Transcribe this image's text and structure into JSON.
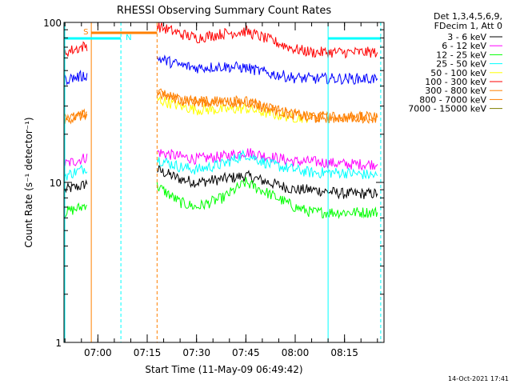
{
  "chart_data": {
    "type": "line",
    "title": "RHESSI Observing Summary Count Rates",
    "xlabel": "Start Time (11-May-09 06:49:42)",
    "ylabel": "Count Rate (s⁻¹ detector⁻¹)",
    "yscale": "log",
    "ylim": [
      1,
      100
    ],
    "xlim": [
      "06:49:42",
      "08:27:00"
    ],
    "x_ticks": [
      "07:00",
      "07:15",
      "07:30",
      "07:45",
      "08:00",
      "08:15"
    ],
    "y_ticks": [
      "1",
      "10",
      "100"
    ],
    "legend_header": [
      "Det 1,3,4,5,6,9,",
      "FDecim 1, Att 0"
    ],
    "legend_position": "right",
    "series": [
      {
        "name": "3 - 6 keV",
        "color": "#000000",
        "x": [
          "06:50",
          "06:55",
          "06:57",
          "07:18",
          "07:25",
          "07:30",
          "07:38",
          "07:45",
          "07:52",
          "08:00",
          "08:05",
          "08:15",
          "08:25"
        ],
        "y": [
          9.0,
          9.5,
          10.0,
          12.0,
          10.5,
          10.0,
          10.5,
          11.0,
          10.0,
          9.0,
          9.0,
          8.5,
          8.5
        ]
      },
      {
        "name": "6 - 12 keV",
        "color": "#ff00ff",
        "x": [
          "06:50",
          "06:55",
          "06:57",
          "07:18",
          "07:25",
          "07:30",
          "07:38",
          "07:45",
          "07:52",
          "08:00",
          "08:05",
          "08:15",
          "08:25"
        ],
        "y": [
          13.0,
          14.0,
          14.5,
          15.5,
          14.5,
          14.0,
          14.5,
          15.5,
          14.5,
          13.5,
          13.5,
          13.0,
          13.0
        ]
      },
      {
        "name": "12 - 25 keV",
        "color": "#00ff00",
        "x": [
          "06:50",
          "06:55",
          "06:57",
          "07:18",
          "07:25",
          "07:30",
          "07:38",
          "07:45",
          "07:52",
          "08:00",
          "08:05",
          "08:15",
          "08:25"
        ],
        "y": [
          6.5,
          7.0,
          7.5,
          9.5,
          7.5,
          7.0,
          8.0,
          10.0,
          8.5,
          7.0,
          6.5,
          6.5,
          6.5
        ]
      },
      {
        "name": "25 - 50 keV",
        "color": "#00ffff",
        "x": [
          "06:50",
          "06:55",
          "06:57",
          "07:18",
          "07:25",
          "07:30",
          "07:38",
          "07:45",
          "07:52",
          "08:00",
          "08:05",
          "08:15",
          "08:25"
        ],
        "y": [
          11.0,
          12.0,
          12.5,
          14.0,
          12.5,
          12.0,
          13.0,
          15.0,
          13.0,
          12.0,
          11.5,
          11.5,
          11.0
        ]
      },
      {
        "name": "50 - 100 keV",
        "color": "#ffff00",
        "x": [
          "07:18",
          "07:25",
          "07:30",
          "07:38",
          "07:45",
          "07:52",
          "08:00",
          "08:05"
        ],
        "y": [
          33.0,
          30.0,
          28.5,
          28.5,
          29.0,
          27.0,
          25.5,
          25.5
        ]
      },
      {
        "name": "100 - 300 keV",
        "color": "#ff0000",
        "x": [
          "06:50",
          "06:55",
          "06:57",
          "07:18",
          "07:25",
          "07:30",
          "07:38",
          "07:45",
          "07:52",
          "08:00",
          "08:05",
          "08:15",
          "08:25"
        ],
        "y": [
          65.0,
          70.0,
          72.0,
          95.0,
          85.0,
          80.0,
          85.0,
          88.0,
          78.0,
          68.0,
          65.0,
          65.0,
          65.0
        ]
      },
      {
        "name": "300 - 800 keV",
        "color": "#ff8000",
        "x": [
          "06:50",
          "06:55",
          "06:57",
          "07:18",
          "07:25",
          "07:30",
          "07:38",
          "07:45",
          "07:52",
          "08:00",
          "08:05",
          "08:15",
          "08:25"
        ],
        "y": [
          25.0,
          26.0,
          27.0,
          36.0,
          33.0,
          32.0,
          32.0,
          32.0,
          29.0,
          26.5,
          25.5,
          25.5,
          25.5
        ]
      },
      {
        "name": "800 - 7000 keV",
        "color": "#ff8000",
        "x": [
          "06:50",
          "06:55",
          "06:57",
          "07:18",
          "07:25",
          "07:30",
          "07:38",
          "07:45",
          "07:52",
          "08:00",
          "08:05",
          "08:15",
          "08:25"
        ],
        "y": [
          25.0,
          26.0,
          27.0,
          36.0,
          33.0,
          32.0,
          32.0,
          32.0,
          29.0,
          26.5,
          25.5,
          25.5,
          25.5
        ]
      },
      {
        "name": "7000 - 15000 keV",
        "color": "#808000",
        "x": [],
        "y": []
      },
      {
        "name": "",
        "color": "#0000ff",
        "x": [
          "06:50",
          "06:55",
          "06:57",
          "07:18",
          "07:25",
          "07:30",
          "07:38",
          "07:45",
          "07:52",
          "08:00",
          "08:05",
          "08:15",
          "08:25"
        ],
        "y": [
          44.0,
          46.0,
          47.0,
          60.0,
          54.0,
          52.0,
          53.0,
          52.0,
          48.0,
          45.0,
          44.5,
          44.5,
          44.5
        ]
      }
    ],
    "annotations": [
      {
        "label": "S",
        "color": "#ff8000"
      },
      {
        "label": "N",
        "color": "#00ffff"
      }
    ],
    "footer_timestamp": "14-Oct-2021 17:41"
  }
}
